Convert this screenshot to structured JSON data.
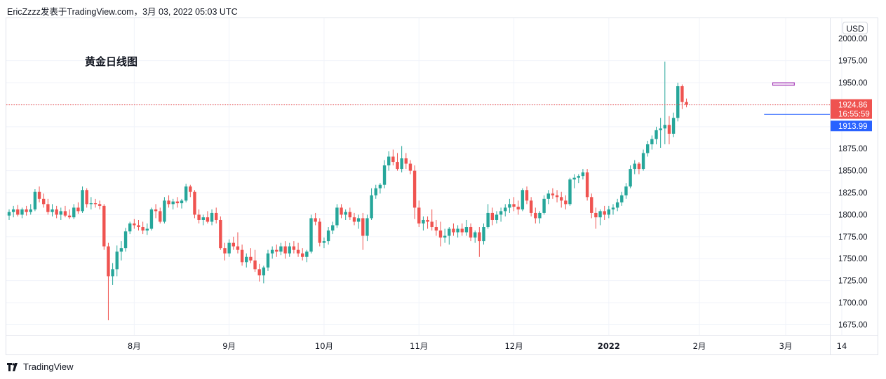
{
  "header": {
    "caption": "EricZzzz发表于TradingView.com，3月 03, 2022 05:03 UTC"
  },
  "footer": {
    "brand": "TradingView"
  },
  "currency": "USD",
  "colors": {
    "up": "#26a69a",
    "down": "#ef5350",
    "price_line": "#ef5350",
    "h_line": "#2962ff",
    "box": "#9c27b0",
    "grid": "#f0f3fa"
  },
  "chart_data": {
    "type": "candlestick",
    "title": "黄金日线图",
    "ylim": [
      1650,
      2000
    ],
    "y_ticks": [
      1675,
      1700,
      1725,
      1750,
      1775,
      1800,
      1825,
      1850,
      1875,
      1900,
      1925,
      1950,
      1975
    ],
    "y_tick_labels": [
      "1675.00",
      "1700.00",
      "1725.00",
      "1750.00",
      "1775.00",
      "1800.00",
      "1825.00",
      "1850.00",
      "1875.00",
      "1900.00",
      "1925.00",
      "1950.00",
      "1975.00"
    ],
    "x_tick_labels": [
      {
        "label": "8月",
        "bar": 29
      },
      {
        "label": "9月",
        "bar": 51
      },
      {
        "label": "10月",
        "bar": 73
      },
      {
        "label": "11月",
        "bar": 95
      },
      {
        "label": "12月",
        "bar": 117
      },
      {
        "label": "2022",
        "bar": 139,
        "bold": true
      },
      {
        "label": "2月",
        "bar": 160
      },
      {
        "label": "3月",
        "bar": 180
      },
      {
        "label": "14",
        "bar": 193
      }
    ],
    "last_price": {
      "value": 1924.86,
      "label": "1924.86",
      "countdown": "16:55:59"
    },
    "horizontal_line": {
      "value": 1913.99,
      "label": "1913.99"
    },
    "box_annotation": {
      "top": 1950,
      "bottom": 1947,
      "from_bar": 177,
      "to_bar": 182
    },
    "ohlc": [
      [
        1799,
        1806,
        1794,
        1803
      ],
      [
        1803,
        1810,
        1797,
        1806
      ],
      [
        1806,
        1811,
        1798,
        1800
      ],
      [
        1800,
        1808,
        1796,
        1806
      ],
      [
        1806,
        1810,
        1799,
        1803
      ],
      [
        1803,
        1812,
        1800,
        1806
      ],
      [
        1806,
        1829,
        1804,
        1826
      ],
      [
        1826,
        1832,
        1814,
        1818
      ],
      [
        1818,
        1824,
        1808,
        1812
      ],
      [
        1812,
        1818,
        1800,
        1803
      ],
      [
        1803,
        1812,
        1798,
        1806
      ],
      [
        1806,
        1810,
        1796,
        1800
      ],
      [
        1800,
        1808,
        1794,
        1804
      ],
      [
        1804,
        1810,
        1797,
        1799
      ],
      [
        1799,
        1806,
        1795,
        1797
      ],
      [
        1797,
        1812,
        1795,
        1808
      ],
      [
        1808,
        1814,
        1801,
        1804
      ],
      [
        1804,
        1832,
        1802,
        1828
      ],
      [
        1828,
        1830,
        1808,
        1812
      ],
      [
        1812,
        1820,
        1806,
        1813
      ],
      [
        1813,
        1818,
        1808,
        1812
      ],
      [
        1812,
        1816,
        1806,
        1810
      ],
      [
        1810,
        1812,
        1760,
        1764
      ],
      [
        1764,
        1768,
        1680,
        1730
      ],
      [
        1730,
        1745,
        1720,
        1738
      ],
      [
        1738,
        1765,
        1730,
        1758
      ],
      [
        1758,
        1770,
        1748,
        1762
      ],
      [
        1762,
        1785,
        1758,
        1781
      ],
      [
        1781,
        1792,
        1778,
        1790
      ],
      [
        1790,
        1795,
        1784,
        1788
      ],
      [
        1788,
        1794,
        1782,
        1786
      ],
      [
        1786,
        1792,
        1778,
        1782
      ],
      [
        1782,
        1790,
        1777,
        1784
      ],
      [
        1784,
        1808,
        1782,
        1806
      ],
      [
        1806,
        1812,
        1796,
        1804
      ],
      [
        1804,
        1808,
        1790,
        1792
      ],
      [
        1792,
        1820,
        1790,
        1816
      ],
      [
        1816,
        1822,
        1808,
        1812
      ],
      [
        1812,
        1818,
        1806,
        1815
      ],
      [
        1815,
        1820,
        1808,
        1813
      ],
      [
        1813,
        1818,
        1807,
        1816
      ],
      [
        1816,
        1835,
        1814,
        1832
      ],
      [
        1832,
        1834,
        1820,
        1826
      ],
      [
        1826,
        1828,
        1796,
        1800
      ],
      [
        1800,
        1806,
        1790,
        1794
      ],
      [
        1794,
        1800,
        1788,
        1797
      ],
      [
        1797,
        1804,
        1790,
        1792
      ],
      [
        1792,
        1806,
        1788,
        1802
      ],
      [
        1802,
        1808,
        1790,
        1794
      ],
      [
        1794,
        1798,
        1760,
        1762
      ],
      [
        1762,
        1768,
        1748,
        1756
      ],
      [
        1756,
        1772,
        1752,
        1768
      ],
      [
        1768,
        1775,
        1760,
        1764
      ],
      [
        1764,
        1780,
        1756,
        1760
      ],
      [
        1760,
        1766,
        1742,
        1746
      ],
      [
        1746,
        1756,
        1740,
        1752
      ],
      [
        1752,
        1762,
        1745,
        1748
      ],
      [
        1748,
        1760,
        1735,
        1738
      ],
      [
        1738,
        1744,
        1724,
        1731
      ],
      [
        1731,
        1742,
        1722,
        1740
      ],
      [
        1740,
        1760,
        1736,
        1756
      ],
      [
        1756,
        1764,
        1750,
        1760
      ],
      [
        1760,
        1766,
        1752,
        1758
      ],
      [
        1758,
        1768,
        1754,
        1764
      ],
      [
        1764,
        1770,
        1750,
        1756
      ],
      [
        1756,
        1768,
        1752,
        1764
      ],
      [
        1764,
        1770,
        1756,
        1760
      ],
      [
        1760,
        1768,
        1752,
        1756
      ],
      [
        1756,
        1762,
        1748,
        1752
      ],
      [
        1752,
        1760,
        1746,
        1758
      ],
      [
        1758,
        1800,
        1756,
        1796
      ],
      [
        1796,
        1802,
        1788,
        1792
      ],
      [
        1792,
        1796,
        1764,
        1768
      ],
      [
        1768,
        1774,
        1762,
        1770
      ],
      [
        1770,
        1786,
        1766,
        1782
      ],
      [
        1782,
        1792,
        1778,
        1788
      ],
      [
        1788,
        1812,
        1785,
        1808
      ],
      [
        1808,
        1812,
        1796,
        1800
      ],
      [
        1800,
        1806,
        1794,
        1803
      ],
      [
        1803,
        1808,
        1794,
        1797
      ],
      [
        1797,
        1802,
        1788,
        1792
      ],
      [
        1792,
        1800,
        1784,
        1796
      ],
      [
        1796,
        1802,
        1760,
        1776
      ],
      [
        1776,
        1800,
        1770,
        1796
      ],
      [
        1796,
        1830,
        1794,
        1822
      ],
      [
        1822,
        1834,
        1818,
        1830
      ],
      [
        1830,
        1836,
        1824,
        1834
      ],
      [
        1834,
        1862,
        1830,
        1856
      ],
      [
        1856,
        1872,
        1850,
        1866
      ],
      [
        1866,
        1874,
        1856,
        1860
      ],
      [
        1860,
        1870,
        1850,
        1852
      ],
      [
        1852,
        1878,
        1848,
        1864
      ],
      [
        1864,
        1870,
        1852,
        1858
      ],
      [
        1858,
        1862,
        1846,
        1850
      ],
      [
        1850,
        1856,
        1795,
        1808
      ],
      [
        1808,
        1816,
        1786,
        1790
      ],
      [
        1790,
        1798,
        1782,
        1794
      ],
      [
        1794,
        1798,
        1784,
        1792
      ],
      [
        1792,
        1806,
        1782,
        1786
      ],
      [
        1786,
        1794,
        1776,
        1782
      ],
      [
        1782,
        1792,
        1764,
        1774
      ],
      [
        1774,
        1784,
        1768,
        1776
      ],
      [
        1776,
        1786,
        1766,
        1784
      ],
      [
        1784,
        1790,
        1776,
        1780
      ],
      [
        1780,
        1788,
        1774,
        1784
      ],
      [
        1784,
        1790,
        1776,
        1780
      ],
      [
        1780,
        1794,
        1776,
        1786
      ],
      [
        1786,
        1790,
        1770,
        1774
      ],
      [
        1774,
        1782,
        1768,
        1780
      ],
      [
        1780,
        1786,
        1752,
        1770
      ],
      [
        1770,
        1790,
        1766,
        1786
      ],
      [
        1786,
        1812,
        1784,
        1802
      ],
      [
        1802,
        1808,
        1788,
        1794
      ],
      [
        1794,
        1804,
        1790,
        1800
      ],
      [
        1800,
        1808,
        1792,
        1804
      ],
      [
        1804,
        1812,
        1798,
        1808
      ],
      [
        1808,
        1818,
        1802,
        1812
      ],
      [
        1812,
        1820,
        1804,
        1809
      ],
      [
        1809,
        1816,
        1800,
        1806
      ],
      [
        1806,
        1830,
        1804,
        1828
      ],
      [
        1828,
        1832,
        1812,
        1816
      ],
      [
        1816,
        1820,
        1798,
        1802
      ],
      [
        1802,
        1808,
        1790,
        1796
      ],
      [
        1796,
        1804,
        1790,
        1802
      ],
      [
        1802,
        1822,
        1800,
        1818
      ],
      [
        1818,
        1828,
        1812,
        1824
      ],
      [
        1824,
        1830,
        1818,
        1822
      ],
      [
        1822,
        1828,
        1814,
        1820
      ],
      [
        1820,
        1826,
        1808,
        1816
      ],
      [
        1816,
        1822,
        1806,
        1812
      ],
      [
        1812,
        1842,
        1810,
        1840
      ],
      [
        1840,
        1846,
        1830,
        1842
      ],
      [
        1842,
        1846,
        1836,
        1844
      ],
      [
        1844,
        1852,
        1840,
        1848
      ],
      [
        1848,
        1852,
        1816,
        1820
      ],
      [
        1820,
        1824,
        1796,
        1802
      ],
      [
        1802,
        1808,
        1784,
        1797
      ],
      [
        1797,
        1806,
        1788,
        1804
      ],
      [
        1804,
        1810,
        1794,
        1800
      ],
      [
        1800,
        1810,
        1796,
        1806
      ],
      [
        1806,
        1812,
        1800,
        1808
      ],
      [
        1808,
        1818,
        1804,
        1814
      ],
      [
        1814,
        1826,
        1810,
        1822
      ],
      [
        1822,
        1836,
        1818,
        1832
      ],
      [
        1832,
        1856,
        1830,
        1852
      ],
      [
        1852,
        1862,
        1846,
        1858
      ],
      [
        1858,
        1860,
        1846,
        1852
      ],
      [
        1852,
        1874,
        1850,
        1870
      ],
      [
        1870,
        1884,
        1866,
        1880
      ],
      [
        1880,
        1890,
        1874,
        1886
      ],
      [
        1886,
        1900,
        1880,
        1896
      ],
      [
        1896,
        1910,
        1876,
        1898
      ],
      [
        1898,
        1974,
        1880,
        1902
      ],
      [
        1902,
        1912,
        1880,
        1892
      ],
      [
        1892,
        1916,
        1888,
        1910
      ],
      [
        1910,
        1950,
        1906,
        1946
      ],
      [
        1946,
        1948,
        1920,
        1928
      ],
      [
        1928,
        1932,
        1922,
        1925
      ]
    ]
  }
}
